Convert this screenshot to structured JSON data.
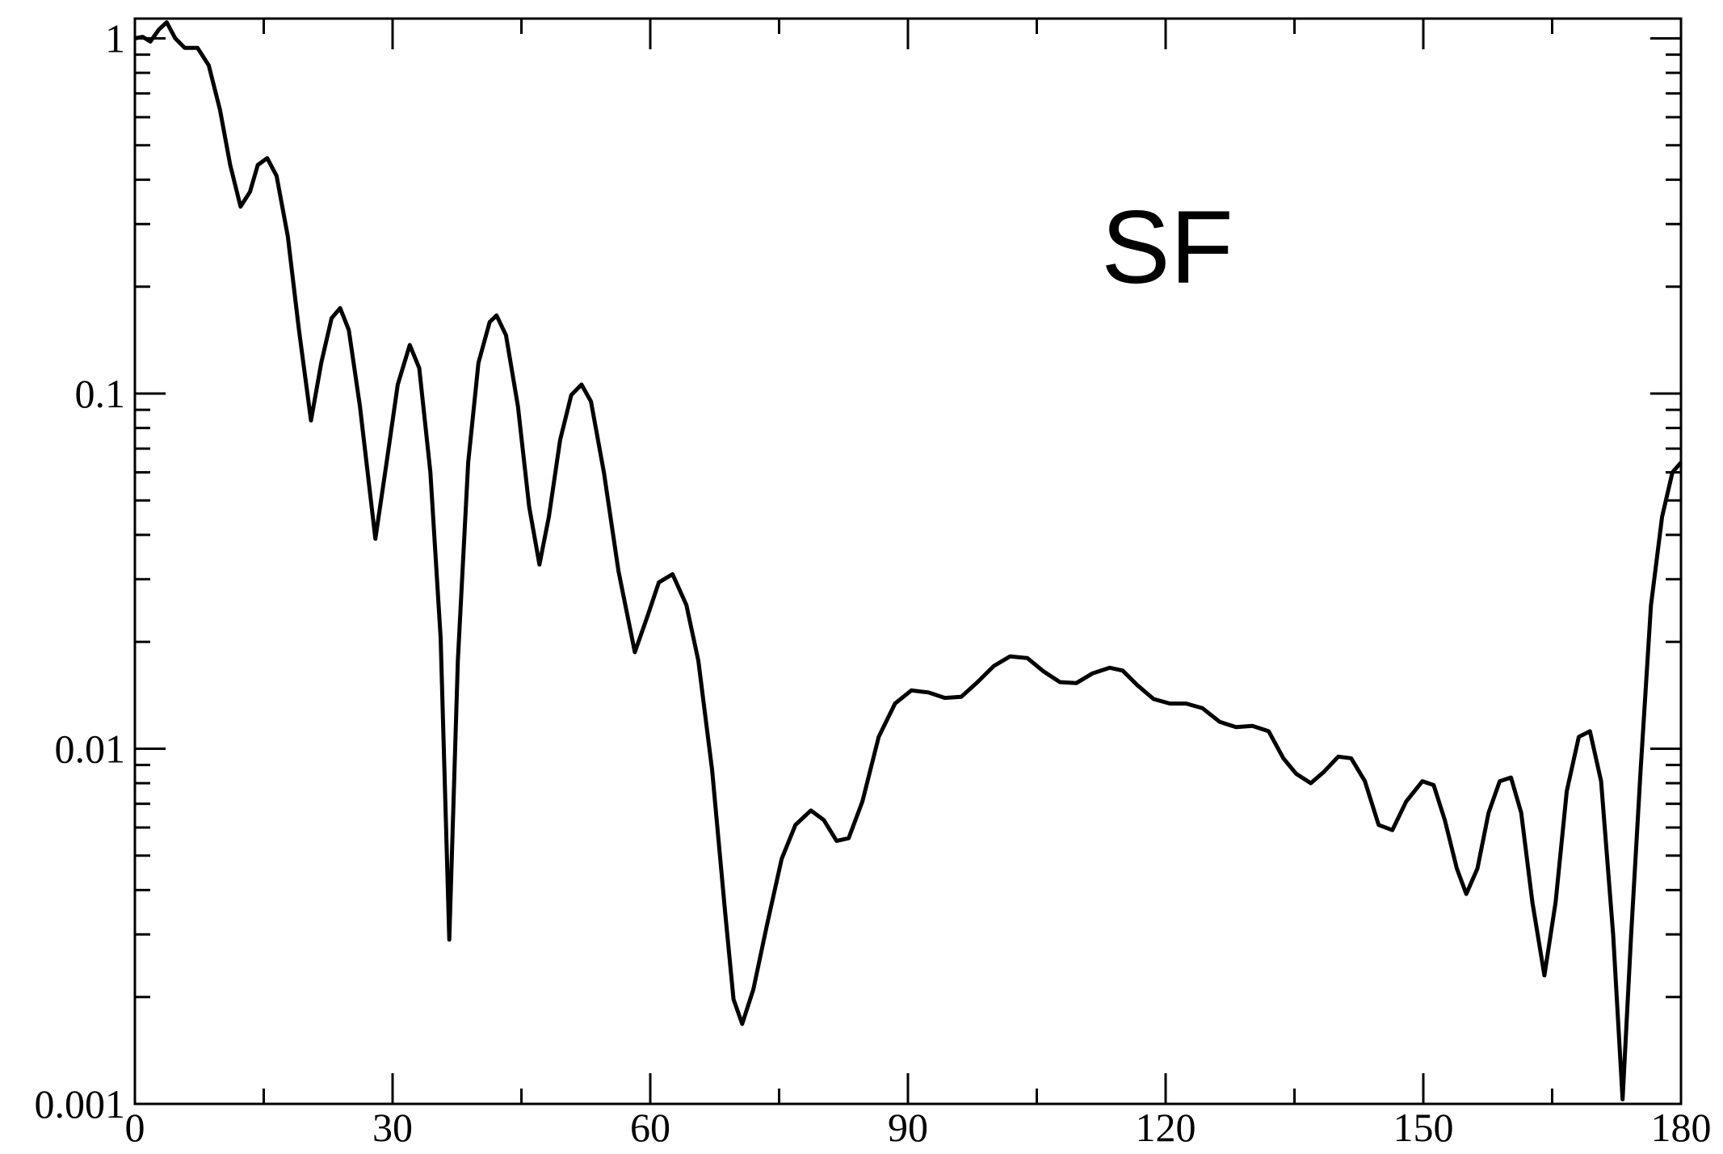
{
  "chart_data": {
    "type": "line",
    "annotation": "SF",
    "log_y": true,
    "xlim": [
      0,
      180
    ],
    "xticks": [
      0,
      30,
      60,
      90,
      120,
      150,
      180
    ],
    "xminorticks": [
      15,
      45,
      75,
      105,
      135,
      165
    ],
    "ylim": [
      0.001,
      1.137
    ],
    "yticks": [
      0.001,
      0.01,
      0.1,
      1
    ],
    "yminorticks": [
      0.002,
      0.003,
      0.004,
      0.005,
      0.006,
      0.007,
      0.008,
      0.009,
      0.02,
      0.03,
      0.04,
      0.05,
      0.06,
      0.07,
      0.08,
      0.09,
      0.2,
      0.3,
      0.4,
      0.5,
      0.6,
      0.7,
      0.8,
      0.9
    ],
    "series": [
      {
        "color": "#000000",
        "x": [
          0,
          0.9,
          1.8,
          2.8,
          3.7,
          4.7,
          5.8,
          7.3,
          8.6,
          9.9,
          11.1,
          12.3,
          13.4,
          14.3,
          15.4,
          16.5,
          17.8,
          19.1,
          20.5,
          21.7,
          22.9,
          23.9,
          24.9,
          26.2,
          28.0,
          29.3,
          30.6,
          32.0,
          33.1,
          34.4,
          35.6,
          36.6,
          37.6,
          38.8,
          40.0,
          41.3,
          42.1,
          43.2,
          44.6,
          45.9,
          47.1,
          48.2,
          49.5,
          50.8,
          52.0,
          53.1,
          54.6,
          56.3,
          58.2,
          59.7,
          61.0,
          62.6,
          64.2,
          65.6,
          67.2,
          68.7,
          69.7,
          70.7,
          72.0,
          73.6,
          75.3,
          76.9,
          78.7,
          80.2,
          81.7,
          83.1,
          84.7,
          86.6,
          88.5,
          90.4,
          92.4,
          94.3,
          96.2,
          98.1,
          100.0,
          101.9,
          103.9,
          105.8,
          107.7,
          109.6,
          111.5,
          113.5,
          115.0,
          116.7,
          118.6,
          120.5,
          122.4,
          124.3,
          126.3,
          128.2,
          130.1,
          132.0,
          133.7,
          135.2,
          136.9,
          138.4,
          140.1,
          141.6,
          143.2,
          144.8,
          146.4,
          148.0,
          149.9,
          151.2,
          152.5,
          153.9,
          155.0,
          156.3,
          157.6,
          158.9,
          160.2,
          161.4,
          162.7,
          164.1,
          165.4,
          166.7,
          168.1,
          169.4,
          170.7,
          172.1,
          173.2,
          174.2,
          175.3,
          176.5,
          177.8,
          179.0,
          180
        ],
        "values": [
          1.0,
          1.01,
          0.98,
          1.06,
          1.11,
          1.0,
          0.94,
          0.94,
          0.84,
          0.63,
          0.44,
          0.336,
          0.37,
          0.44,
          0.46,
          0.41,
          0.277,
          0.151,
          0.084,
          0.122,
          0.163,
          0.174,
          0.151,
          0.092,
          0.039,
          0.064,
          0.106,
          0.137,
          0.118,
          0.06,
          0.0205,
          0.0029,
          0.0177,
          0.064,
          0.122,
          0.159,
          0.166,
          0.146,
          0.092,
          0.048,
          0.033,
          0.045,
          0.074,
          0.099,
          0.106,
          0.095,
          0.06,
          0.0316,
          0.0187,
          0.0237,
          0.0294,
          0.031,
          0.0254,
          0.0177,
          0.0087,
          0.0035,
          0.00197,
          0.00168,
          0.0021,
          0.0032,
          0.0049,
          0.0061,
          0.0067,
          0.0063,
          0.0055,
          0.0056,
          0.0071,
          0.0108,
          0.0134,
          0.0146,
          0.0144,
          0.0139,
          0.014,
          0.0154,
          0.0171,
          0.0182,
          0.018,
          0.0165,
          0.0154,
          0.0153,
          0.0163,
          0.0169,
          0.0166,
          0.0151,
          0.0138,
          0.0134,
          0.0134,
          0.013,
          0.0119,
          0.0115,
          0.0116,
          0.0112,
          0.0094,
          0.0085,
          0.008,
          0.0086,
          0.0095,
          0.0094,
          0.0081,
          0.0061,
          0.0059,
          0.0071,
          0.0081,
          0.0079,
          0.0063,
          0.0046,
          0.0039,
          0.0046,
          0.0066,
          0.0081,
          0.0083,
          0.0066,
          0.0037,
          0.0023,
          0.0037,
          0.0076,
          0.0108,
          0.0112,
          0.0081,
          0.003,
          0.00103,
          0.003,
          0.0087,
          0.0253,
          0.045,
          0.06,
          0.064
        ]
      }
    ]
  }
}
